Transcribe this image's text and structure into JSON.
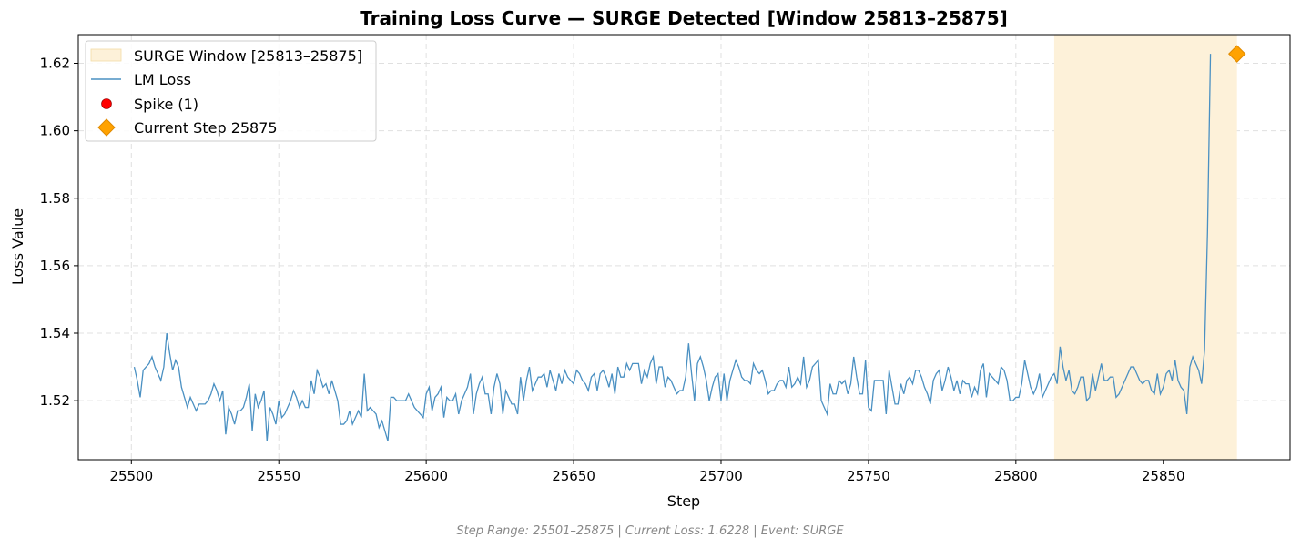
{
  "chart_data": {
    "type": "line",
    "title": "Training Loss Curve — SURGE Detected [Window 25813–25875]",
    "xlabel": "Step",
    "ylabel": "Loss Value",
    "xlim": [
      25482,
      25893
    ],
    "ylim": [
      1.5025,
      1.6285
    ],
    "xticks": [
      25500,
      25550,
      25600,
      25650,
      25700,
      25750,
      25800,
      25850
    ],
    "yticks": [
      1.52,
      1.54,
      1.56,
      1.58,
      1.6,
      1.62
    ],
    "ytick_labels": [
      "1.52",
      "1.54",
      "1.56",
      "1.58",
      "1.60",
      "1.62"
    ],
    "grid": true,
    "legend_position": "top-left",
    "legend": {
      "window": "SURGE Window [25813–25875]",
      "line": "LM Loss",
      "spike": "Spike (1)",
      "current": "Current Step 25875"
    },
    "surge_window": {
      "start": 25813,
      "end": 25875,
      "color": "#fdf1d9"
    },
    "series": [
      {
        "name": "LM Loss",
        "color": "#4a90c2",
        "x_start": 25501,
        "x_step": 1,
        "values": [
          1.53,
          1.526,
          1.521,
          1.529,
          1.53,
          1.531,
          1.533,
          1.53,
          1.528,
          1.526,
          1.53,
          1.54,
          1.534,
          1.529,
          1.532,
          1.53,
          1.524,
          1.521,
          1.518,
          1.521,
          1.519,
          1.517,
          1.519,
          1.519,
          1.519,
          1.52,
          1.522,
          1.525,
          1.523,
          1.52,
          1.523,
          1.51,
          1.518,
          1.516,
          1.513,
          1.517,
          1.517,
          1.518,
          1.521,
          1.525,
          1.511,
          1.522,
          1.518,
          1.52,
          1.523,
          1.508,
          1.518,
          1.516,
          1.513,
          1.52,
          1.515,
          1.516,
          1.518,
          1.52,
          1.523,
          1.521,
          1.518,
          1.52,
          1.518,
          1.518,
          1.526,
          1.522,
          1.529,
          1.527,
          1.524,
          1.525,
          1.522,
          1.526,
          1.523,
          1.52,
          1.513,
          1.513,
          1.514,
          1.517,
          1.513,
          1.515,
          1.517,
          1.515,
          1.528,
          1.517,
          1.518,
          1.517,
          1.516,
          1.512,
          1.514,
          1.511,
          1.508,
          1.521,
          1.521,
          1.52,
          1.52,
          1.52,
          1.52,
          1.522,
          1.52,
          1.518,
          1.517,
          1.516,
          1.515,
          1.522,
          1.524,
          1.517,
          1.521,
          1.522,
          1.524,
          1.515,
          1.521,
          1.52,
          1.52,
          1.522,
          1.516,
          1.52,
          1.522,
          1.524,
          1.528,
          1.516,
          1.522,
          1.525,
          1.527,
          1.522,
          1.522,
          1.516,
          1.524,
          1.528,
          1.525,
          1.516,
          1.523,
          1.521,
          1.519,
          1.519,
          1.516,
          1.527,
          1.52,
          1.526,
          1.53,
          1.523,
          1.525,
          1.527,
          1.527,
          1.528,
          1.524,
          1.529,
          1.526,
          1.523,
          1.528,
          1.525,
          1.529,
          1.527,
          1.526,
          1.525,
          1.529,
          1.528,
          1.526,
          1.525,
          1.523,
          1.527,
          1.528,
          1.523,
          1.528,
          1.529,
          1.527,
          1.524,
          1.528,
          1.522,
          1.53,
          1.527,
          1.527,
          1.531,
          1.529,
          1.531,
          1.531,
          1.531,
          1.525,
          1.529,
          1.527,
          1.531,
          1.533,
          1.525,
          1.53,
          1.53,
          1.524,
          1.527,
          1.526,
          1.524,
          1.522,
          1.523,
          1.523,
          1.527,
          1.537,
          1.528,
          1.52,
          1.531,
          1.533,
          1.53,
          1.526,
          1.52,
          1.524,
          1.527,
          1.528,
          1.52,
          1.528,
          1.52,
          1.526,
          1.529,
          1.532,
          1.53,
          1.527,
          1.526,
          1.526,
          1.525,
          1.531,
          1.529,
          1.528,
          1.529,
          1.526,
          1.522,
          1.523,
          1.523,
          1.525,
          1.526,
          1.526,
          1.524,
          1.53,
          1.524,
          1.525,
          1.527,
          1.525,
          1.533,
          1.524,
          1.526,
          1.53,
          1.531,
          1.532,
          1.52,
          1.518,
          1.516,
          1.525,
          1.522,
          1.522,
          1.526,
          1.525,
          1.526,
          1.522,
          1.525,
          1.533,
          1.527,
          1.522,
          1.522,
          1.532,
          1.518,
          1.517,
          1.526,
          1.526,
          1.526,
          1.526,
          1.516,
          1.529,
          1.524,
          1.519,
          1.519,
          1.525,
          1.522,
          1.526,
          1.527,
          1.525,
          1.529,
          1.529,
          1.527,
          1.524,
          1.522,
          1.519,
          1.526,
          1.528,
          1.529,
          1.523,
          1.526,
          1.53,
          1.527,
          1.523,
          1.526,
          1.522,
          1.526,
          1.525,
          1.525,
          1.521,
          1.524,
          1.522,
          1.529,
          1.531,
          1.521,
          1.528,
          1.527,
          1.526,
          1.525,
          1.53,
          1.529,
          1.526,
          1.52,
          1.52,
          1.521,
          1.521,
          1.525,
          1.532,
          1.528,
          1.524,
          1.522,
          1.524,
          1.528,
          1.521,
          1.523,
          1.525,
          1.527,
          1.528,
          1.525,
          1.536,
          1.53,
          1.526,
          1.529,
          1.523,
          1.522,
          1.524,
          1.527,
          1.527,
          1.52,
          1.521,
          1.528,
          1.523,
          1.527,
          1.531,
          1.526,
          1.526,
          1.527,
          1.527,
          1.521,
          1.522,
          1.524,
          1.526,
          1.528,
          1.53,
          1.53,
          1.528,
          1.526,
          1.525,
          1.526,
          1.526,
          1.523,
          1.522,
          1.528,
          1.522,
          1.524,
          1.528,
          1.529,
          1.526,
          1.532,
          1.526,
          1.524,
          1.523,
          1.516,
          1.53,
          1.533,
          1.531,
          1.529,
          1.525,
          1.535,
          1.57,
          1.6228
        ]
      }
    ],
    "spike": {
      "x": 25875,
      "y": 1.6228,
      "color": "#ff0000"
    },
    "current_step": {
      "x": 25875,
      "y": 1.6228,
      "color": "#ffa200"
    },
    "footer": "Step Range: 25501–25875 | Current Loss: 1.6228 | Event: SURGE"
  }
}
